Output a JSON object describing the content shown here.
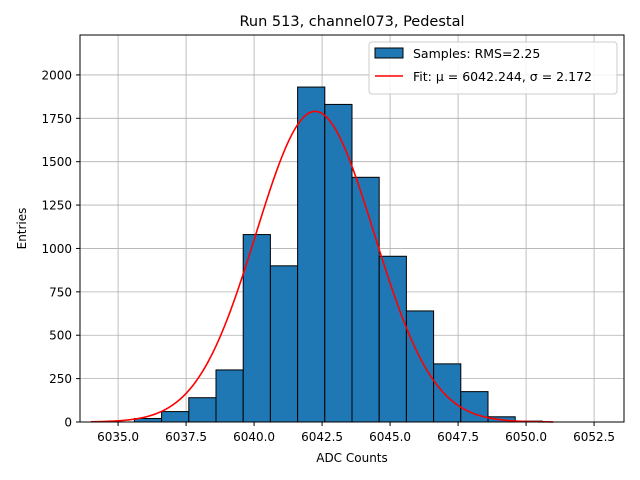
{
  "chart_data": {
    "type": "bar",
    "title": "Run 513, channel073, Pedestal",
    "xlabel": "ADC Counts",
    "ylabel": "Entries",
    "xlim": [
      6033.6,
      6053.6
    ],
    "ylim": [
      0,
      2230
    ],
    "grid": true,
    "legend_position": "top-right",
    "x_ticks": [
      6035.0,
      6037.5,
      6040.0,
      6042.5,
      6045.0,
      6047.5,
      6050.0,
      6052.5
    ],
    "x_tick_labels": [
      "6035.0",
      "6037.5",
      "6040.0",
      "6042.5",
      "6045.0",
      "6047.5",
      "6050.0",
      "6052.5"
    ],
    "y_ticks": [
      0,
      250,
      500,
      750,
      1000,
      1250,
      1500,
      1750,
      2000
    ],
    "y_tick_labels": [
      "0",
      "250",
      "500",
      "750",
      "1000",
      "1250",
      "1500",
      "1750",
      "2000"
    ],
    "histogram": {
      "name": "Samples: RMS=2.25",
      "color": "#1f77b4",
      "edge_color": "#000000",
      "bin_edges": [
        6034.6,
        6035.6,
        6036.6,
        6037.6,
        6038.6,
        6039.6,
        6040.6,
        6041.6,
        6042.6,
        6043.6,
        6044.6,
        6045.6,
        6046.6,
        6047.6,
        6048.6,
        6049.6,
        6050.6,
        6051.6,
        6052.6
      ],
      "values": [
        0,
        20,
        60,
        140,
        300,
        1080,
        900,
        1930,
        1830,
        1410,
        955,
        640,
        335,
        175,
        30,
        5,
        0,
        0
      ]
    },
    "fit": {
      "name": "Fit: μ = 6042.244, σ = 2.172",
      "color": "#ff0000",
      "mu": 6042.244,
      "sigma": 2.172,
      "amplitude": 1790,
      "x_range": [
        6034.0,
        6051.0
      ]
    }
  }
}
